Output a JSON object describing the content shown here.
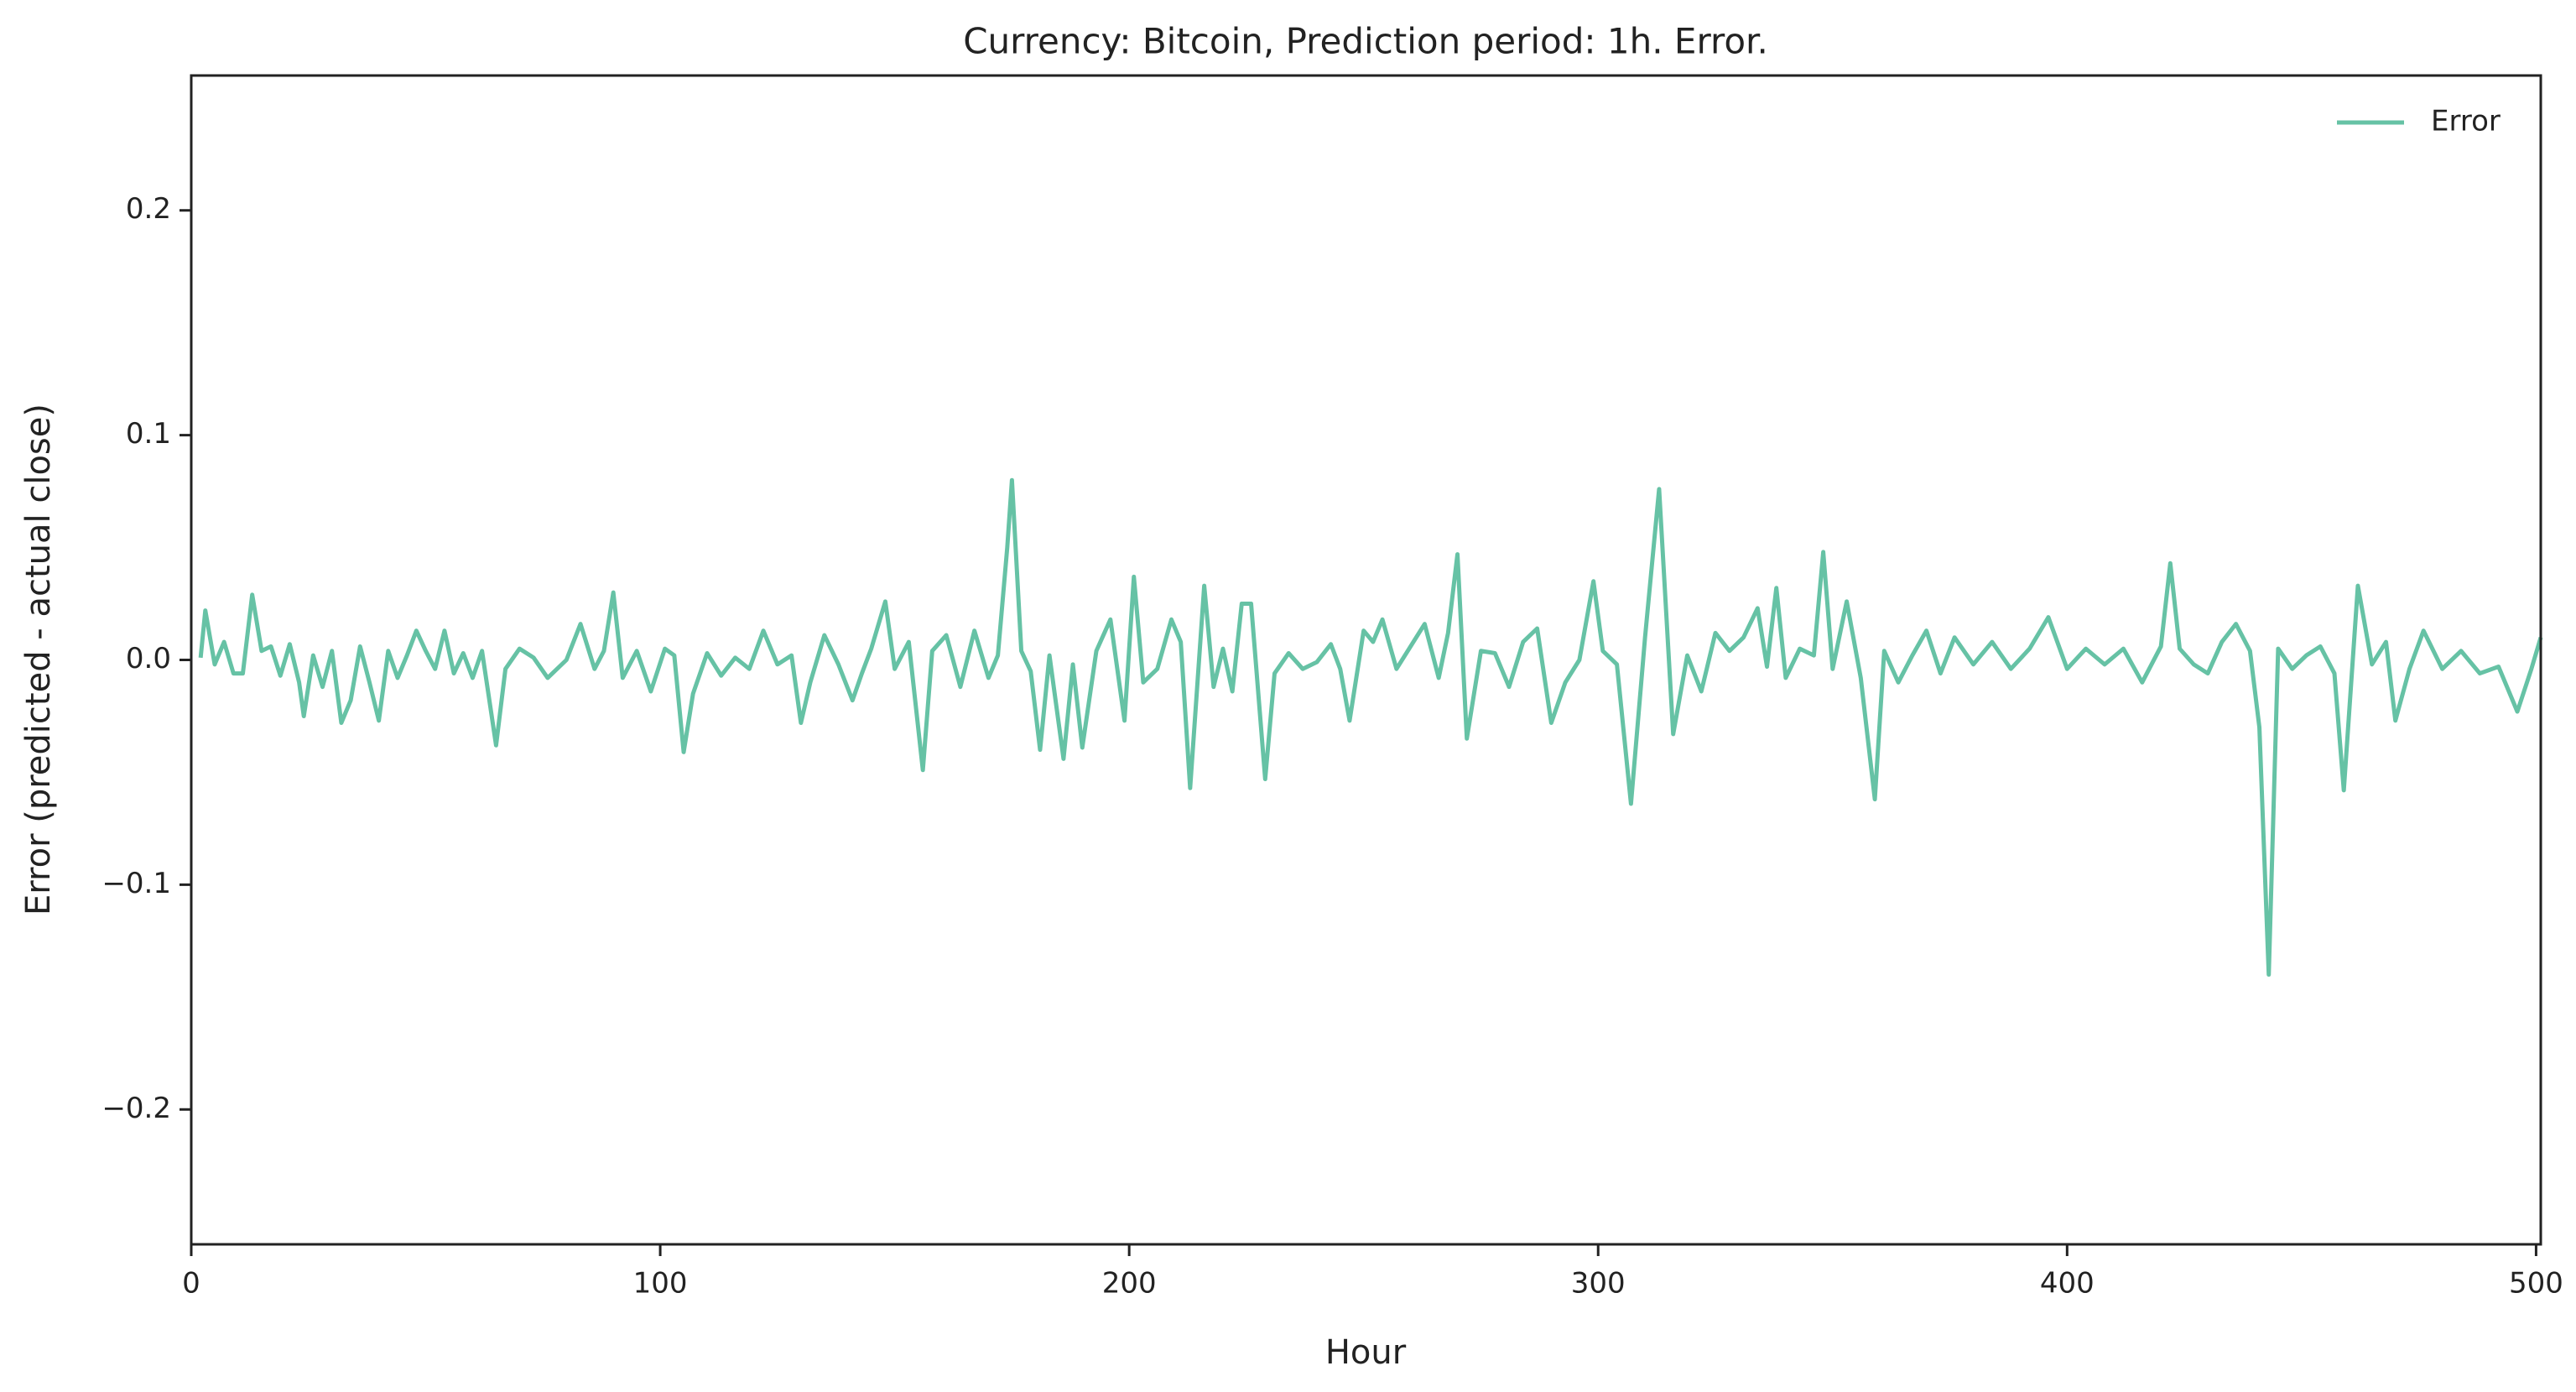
{
  "chart_data": {
    "type": "line",
    "title": "Currency: Bitcoin, Prediction period: 1h. Error.",
    "x_label": "Hour",
    "y_label": "Error (predicted - actual close)",
    "legend_position": "upper right",
    "xlim": [
      0,
      501
    ],
    "ylim": [
      -0.26,
      0.26
    ],
    "xticks": [
      0,
      100,
      200,
      300,
      400,
      500
    ],
    "yticks": [
      {
        "value": -0.2,
        "label": "−0.2"
      },
      {
        "value": -0.1,
        "label": "−0.1"
      },
      {
        "value": 0,
        "label": "0.0"
      },
      0.1,
      0.2
    ],
    "x": [
      2,
      3,
      5,
      7,
      9,
      11,
      13,
      15,
      17,
      19,
      21,
      23,
      24,
      26,
      28,
      30,
      32,
      34,
      36,
      38,
      40,
      42,
      44,
      46,
      48,
      50,
      52,
      54,
      56,
      58,
      60,
      62,
      65,
      67,
      70,
      73,
      76,
      80,
      83,
      86,
      88,
      90,
      92,
      95,
      98,
      101,
      103,
      105,
      107,
      110,
      113,
      116,
      119,
      122,
      125,
      128,
      130,
      132,
      135,
      138,
      141,
      143,
      145,
      148,
      150,
      153,
      156,
      158,
      161,
      164,
      167,
      170,
      172,
      174,
      175,
      177,
      179,
      181,
      183,
      186,
      188,
      190,
      193,
      196,
      199,
      201,
      203,
      206,
      209,
      211,
      213,
      216,
      218,
      220,
      222,
      224,
      226,
      229,
      231,
      234,
      237,
      240,
      243,
      245,
      247,
      250,
      252,
      254,
      257,
      260,
      263,
      266,
      268,
      270,
      272,
      275,
      278,
      281,
      284,
      287,
      290,
      293,
      296,
      299,
      301,
      304,
      307,
      310,
      313,
      316,
      319,
      322,
      325,
      328,
      331,
      334,
      336,
      338,
      340,
      343,
      346,
      348,
      350,
      353,
      356,
      359,
      361,
      364,
      367,
      370,
      373,
      376,
      380,
      384,
      388,
      392,
      396,
      400,
      404,
      408,
      412,
      416,
      420,
      422,
      424,
      427,
      430,
      433,
      436,
      439,
      441,
      443,
      445,
      448,
      451,
      454,
      457,
      459,
      462,
      465,
      468,
      470,
      473,
      476,
      480,
      484,
      488,
      492,
      496,
      499,
      501
    ],
    "series": [
      {
        "name": "Error",
        "color": "#66c2a5",
        "values": [
          0.001,
          0.022,
          -0.002,
          0.008,
          -0.006,
          -0.006,
          0.029,
          0.004,
          0.006,
          -0.007,
          0.007,
          -0.01,
          -0.025,
          0.002,
          -0.012,
          0.004,
          -0.028,
          -0.018,
          0.006,
          -0.01,
          -0.027,
          0.004,
          -0.008,
          0.002,
          0.013,
          0.004,
          -0.004,
          0.013,
          -0.006,
          0.003,
          -0.008,
          0.004,
          -0.038,
          -0.004,
          0.005,
          0.001,
          -0.008,
          0,
          0.016,
          -0.004,
          0.004,
          0.03,
          -0.008,
          0.004,
          -0.014,
          0.005,
          0.002,
          -0.041,
          -0.015,
          0.003,
          -0.007,
          0.001,
          -0.004,
          0.013,
          -0.002,
          0.002,
          -0.028,
          -0.01,
          0.011,
          -0.002,
          -0.018,
          -0.006,
          0.005,
          0.026,
          -0.004,
          0.008,
          -0.049,
          0.004,
          0.011,
          -0.012,
          0.013,
          -0.008,
          0.002,
          0.05,
          0.08,
          0.004,
          -0.005,
          -0.04,
          0.002,
          -0.044,
          -0.002,
          -0.039,
          0.004,
          0.018,
          -0.027,
          0.037,
          -0.01,
          -0.004,
          0.018,
          0.008,
          -0.057,
          0.033,
          -0.012,
          0.005,
          -0.014,
          0.025,
          0.025,
          -0.053,
          -0.006,
          0.003,
          -0.004,
          -0.001,
          0.007,
          -0.004,
          -0.027,
          0.013,
          0.008,
          0.018,
          -0.004,
          0.006,
          0.016,
          -0.008,
          0.012,
          0.047,
          -0.035,
          0.004,
          0.003,
          -0.012,
          0.008,
          0.014,
          -0.028,
          -0.01,
          0,
          0.035,
          0.004,
          -0.002,
          -0.064,
          0.01,
          0.076,
          -0.033,
          0.002,
          -0.014,
          0.012,
          0.004,
          0.01,
          0.023,
          -0.003,
          0.032,
          -0.008,
          0.005,
          0.002,
          0.048,
          -0.004,
          0.026,
          -0.008,
          -0.062,
          0.004,
          -0.01,
          0.002,
          0.013,
          -0.006,
          0.01,
          -0.002,
          0.008,
          -0.004,
          0.005,
          0.019,
          -0.004,
          0.005,
          -0.002,
          0.005,
          -0.01,
          0.006,
          0.043,
          0.005,
          -0.002,
          -0.006,
          0.008,
          0.016,
          0.004,
          -0.03,
          -0.14,
          0.005,
          -0.004,
          0.002,
          0.006,
          -0.006,
          -0.058,
          0.033,
          -0.002,
          0.008,
          -0.027,
          -0.004,
          0.013,
          -0.004,
          0.004,
          -0.006,
          -0.003,
          -0.023,
          -0.004,
          0.01
        ]
      }
    ]
  }
}
